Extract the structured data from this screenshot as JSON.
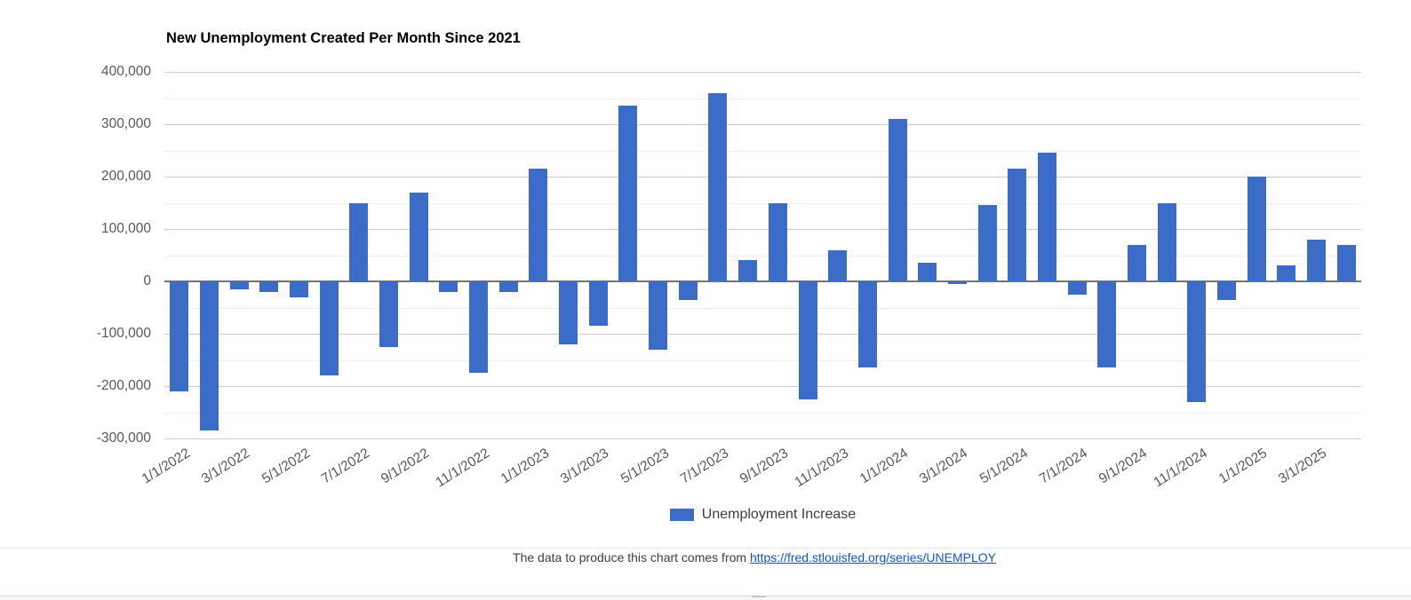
{
  "chart_data": {
    "type": "bar",
    "title": "New Unemployment Created Per Month Since 2021",
    "series": [
      {
        "name": "Unemployment Increase",
        "color": "#3b6cc7",
        "values": [
          -210000,
          -285000,
          -15000,
          -20000,
          -30000,
          -180000,
          150000,
          -125000,
          170000,
          -20000,
          -175000,
          -20000,
          215000,
          -120000,
          -85000,
          335000,
          -130000,
          -35000,
          360000,
          40000,
          150000,
          -225000,
          60000,
          -165000,
          310000,
          35000,
          -5000,
          145000,
          215000,
          245000,
          -25000,
          -165000,
          70000,
          150000,
          -230000,
          -35000,
          200000,
          30000,
          80000,
          70000
        ]
      }
    ],
    "x": [
      "1/1/2022",
      "2/1/2022",
      "3/1/2022",
      "4/1/2022",
      "5/1/2022",
      "6/1/2022",
      "7/1/2022",
      "8/1/2022",
      "9/1/2022",
      "10/1/2022",
      "11/1/2022",
      "12/1/2022",
      "1/1/2023",
      "2/1/2023",
      "3/1/2023",
      "4/1/2023",
      "5/1/2023",
      "6/1/2023",
      "7/1/2023",
      "8/1/2023",
      "9/1/2023",
      "10/1/2023",
      "11/1/2023",
      "12/1/2023",
      "1/1/2024",
      "2/1/2024",
      "3/1/2024",
      "4/1/2024",
      "5/1/2024",
      "6/1/2024",
      "7/1/2024",
      "8/1/2024",
      "9/1/2024",
      "10/1/2024",
      "11/1/2024",
      "12/1/2024",
      "1/1/2025",
      "2/1/2025",
      "3/1/2025",
      "4/1/2025"
    ],
    "x_tick_every": 2,
    "ylim": [
      -300000,
      400000
    ],
    "y_ticks": [
      {
        "value": 400000,
        "label": "400,000"
      },
      {
        "value": 300000,
        "label": "300,000"
      },
      {
        "value": 200000,
        "label": "200,000"
      },
      {
        "value": 100000,
        "label": "100,000"
      },
      {
        "value": 0,
        "label": "0"
      },
      {
        "value": -100000,
        "label": "-100,000"
      },
      {
        "value": -200000,
        "label": "-200,000"
      },
      {
        "value": -300000,
        "label": "-300,000"
      }
    ],
    "y_minor_step": 50000,
    "grid": true,
    "legend_position": "bottom"
  },
  "legend": {
    "label": "Unemployment Increase",
    "swatch_color": "#3b6cc7"
  },
  "footer": {
    "text": "The data to produce this chart comes from ",
    "link_text": "https://fred.stlouisfed.org/series/UNEMPLOY",
    "link_color": "#1155cc"
  },
  "colors": {
    "bar": "#3b6cc7",
    "grid_major": "#cccccc",
    "grid_minor": "#efefef",
    "zero_line": "#757575",
    "axis_text": "#585858"
  }
}
